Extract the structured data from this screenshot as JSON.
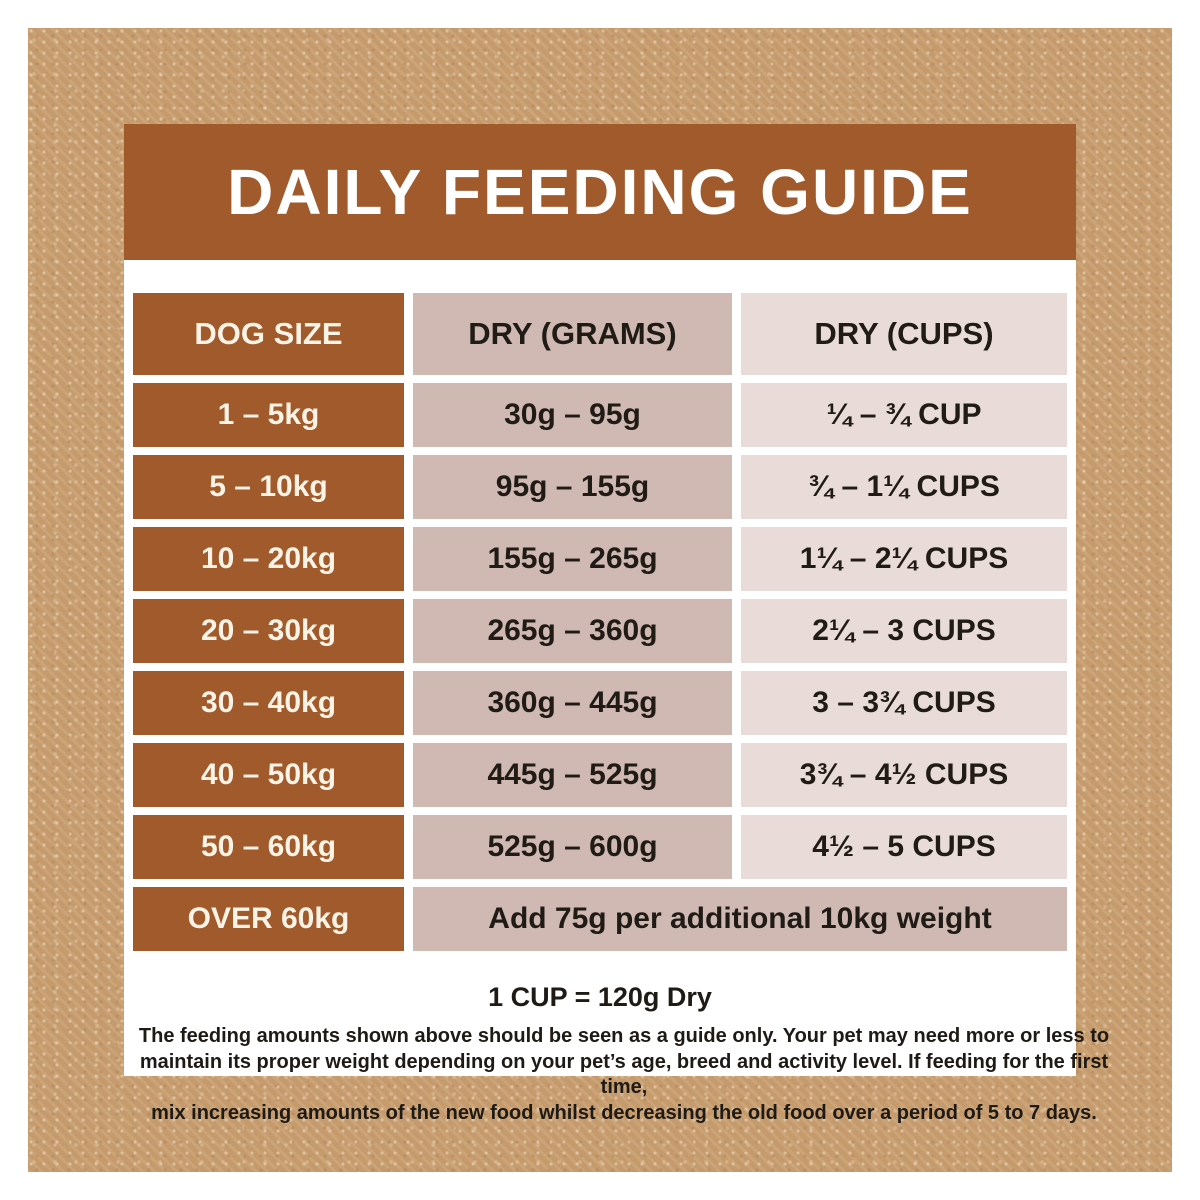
{
  "header": {
    "title": "DAILY FEEDING GUIDE"
  },
  "table": {
    "columns": [
      "DOG SIZE",
      "DRY (GRAMS)",
      "DRY (CUPS)"
    ],
    "rows": [
      {
        "size": "1 – 5kg",
        "grams": "30g – 95g",
        "cups": "¼ – ¾ CUP"
      },
      {
        "size": "5 – 10kg",
        "grams": "95g – 155g",
        "cups": "¾ – 1¼ CUPS"
      },
      {
        "size": "10 – 20kg",
        "grams": "155g – 265g",
        "cups": "1¼ – 2¼ CUPS"
      },
      {
        "size": "20 – 30kg",
        "grams": "265g – 360g",
        "cups": "2¼ – 3 CUPS"
      },
      {
        "size": "30 – 40kg",
        "grams": "360g – 445g",
        "cups": "3 – 3¾ CUPS"
      },
      {
        "size": "40 – 50kg",
        "grams": "445g – 525g",
        "cups": "3¾ – 4½ CUPS"
      },
      {
        "size": "50 – 60kg",
        "grams": "525g – 600g",
        "cups": "4½ – 5 CUPS"
      },
      {
        "size": "OVER 60kg",
        "note": "Add 75g per additional 10kg weight"
      }
    ]
  },
  "footer": {
    "cup_equivalence": "1 CUP = 120g Dry",
    "disclaimer_lines": [
      "The feeding amounts shown above should be seen as a guide only. Your pet may need more or less to",
      "maintain its proper weight depending on your pet’s age, breed and activity level. If feeding for the first time,",
      "mix increasing amounts of the new food whilst decreasing the old food over a period of 5 to 7 days."
    ]
  },
  "colors": {
    "frame_tan": "#C59B6D",
    "brand_brown": "#A05A2B",
    "grams_column": "#CFB9B2",
    "cups_column": "#E9DCD8",
    "dark_text": "#211B16",
    "light_text": "#FAF3E6"
  }
}
